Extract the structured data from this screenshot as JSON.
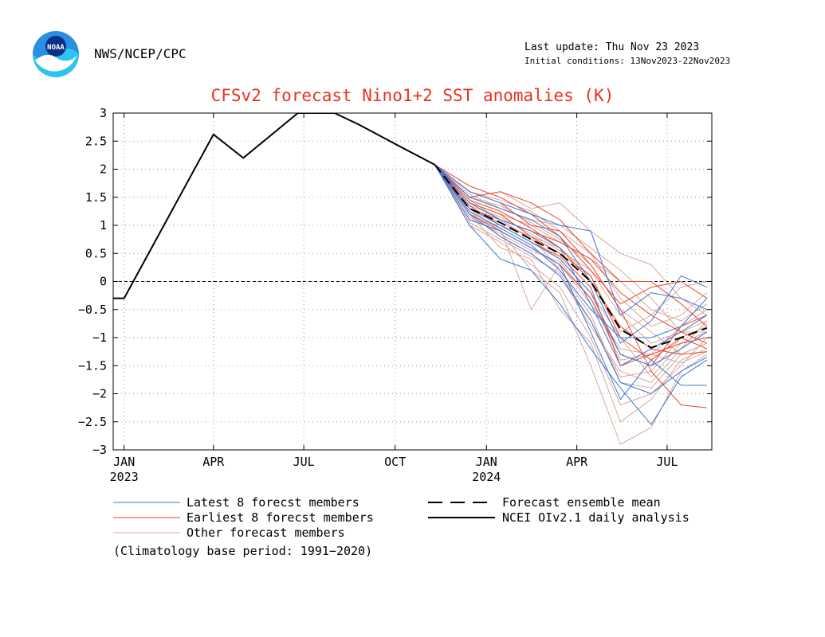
{
  "header": {
    "agency": "NWS/NCEP/CPC",
    "last_update": "Last update: Thu Nov 23 2023",
    "initial_conditions": "Initial conditions: 13Nov2023-22Nov2023",
    "logo_text": "NOAA"
  },
  "colors": {
    "title": "#e8321f",
    "latest": "#3a78d8",
    "earliest": "#e8462a",
    "other": "#d9a79b",
    "analysis": "#000000",
    "mean": "#000000"
  },
  "chart_data": {
    "type": "line",
    "title": "CFSv2 forecast Nino1+2 SST anomalies (K)",
    "ylim": [
      -3,
      3
    ],
    "yticks": [
      -3,
      -2.5,
      -2,
      -1.5,
      -1,
      -0.5,
      0,
      0.5,
      1,
      1.5,
      2,
      2.5,
      3
    ],
    "ytick_labels": [
      "−3",
      "−2.5",
      "−2",
      "−1.5",
      "−1",
      "−0.5",
      "0",
      "0.5",
      "1",
      "1.5",
      "2",
      "2.5",
      "3"
    ],
    "xlim": [
      "2022-12-21",
      "2024-08-15"
    ],
    "xticks": [
      "2023-01-01",
      "2023-04-01",
      "2023-07-01",
      "2023-10-01",
      "2024-01-01",
      "2024-04-01",
      "2024-07-01"
    ],
    "xtick_labels": [
      {
        "month": "JAN",
        "year": "2023"
      },
      {
        "month": "APR",
        "year": ""
      },
      {
        "month": "JUL",
        "year": ""
      },
      {
        "month": "OCT",
        "year": ""
      },
      {
        "month": "JAN",
        "year": "2024"
      },
      {
        "month": "APR",
        "year": ""
      },
      {
        "month": "JUL",
        "year": ""
      }
    ],
    "grid": true,
    "zero_line": true,
    "legend": [
      {
        "key": "latest",
        "label": "Latest 8 forecst members",
        "style": "solid"
      },
      {
        "key": "earliest",
        "label": "Earliest 8 forecst members",
        "style": "solid"
      },
      {
        "key": "other",
        "label": "Other forecast members",
        "style": "solid"
      },
      {
        "key": "mean",
        "label": "Forecast ensemble mean",
        "style": "dashed"
      },
      {
        "key": "analysis",
        "label": "NCEI OIv2.1 daily analysis",
        "style": "solid"
      }
    ],
    "note": "(Climatology base period: 1991−2020)",
    "analysis": {
      "x": [
        "2022-12-21",
        "2023-01-01",
        "2023-04-01",
        "2023-05-01",
        "2023-06-25",
        "2023-08-01",
        "2023-08-25",
        "2023-10-01",
        "2023-11-10"
      ],
      "y": [
        -0.3,
        -0.3,
        2.62,
        2.2,
        3.0,
        3.0,
        2.8,
        2.45,
        2.08
      ]
    },
    "forecast_x": [
      "2023-11-10",
      "2023-12-15",
      "2024-01-15",
      "2024-02-15",
      "2024-03-15",
      "2024-04-15",
      "2024-05-15",
      "2024-06-15",
      "2024-07-15",
      "2024-08-10"
    ],
    "ensemble_mean": [
      2.08,
      1.3,
      1.05,
      0.75,
      0.5,
      0.0,
      -0.85,
      -1.18,
      -1.0,
      -0.83
    ],
    "latest_members": [
      [
        2.08,
        1.0,
        0.4,
        0.2,
        -0.4,
        -1.2,
        -1.9,
        -2.55,
        -1.7,
        -1.4
      ],
      [
        2.08,
        1.2,
        0.8,
        0.5,
        0.1,
        -0.7,
        -1.8,
        -2.0,
        -1.6,
        -1.35
      ],
      [
        2.08,
        1.5,
        1.3,
        1.1,
        0.8,
        0.0,
        -1.1,
        -0.7,
        0.1,
        -0.1
      ],
      [
        2.08,
        1.4,
        1.1,
        0.9,
        0.6,
        -0.4,
        -1.5,
        -1.2,
        -0.9,
        -0.6
      ],
      [
        2.08,
        1.6,
        1.4,
        1.2,
        1.0,
        0.9,
        -0.6,
        -0.2,
        -0.3,
        -0.5
      ],
      [
        2.08,
        1.3,
        1.0,
        0.7,
        0.4,
        -0.2,
        -1.3,
        -1.5,
        -1.2,
        -0.9
      ],
      [
        2.08,
        1.1,
        0.9,
        0.6,
        0.3,
        -0.9,
        -2.1,
        -1.4,
        -1.85,
        -1.85
      ],
      [
        2.08,
        1.25,
        0.95,
        0.65,
        0.2,
        -0.5,
        -1.0,
        -1.0,
        -0.8,
        -0.3
      ]
    ],
    "earliest_members": [
      [
        2.08,
        1.5,
        1.6,
        1.4,
        1.1,
        0.5,
        0.0,
        0.0,
        -0.4,
        -0.8
      ],
      [
        2.08,
        1.6,
        1.4,
        1.0,
        0.9,
        0.3,
        -0.5,
        -1.6,
        -2.2,
        -2.25
      ],
      [
        2.08,
        1.4,
        1.2,
        0.8,
        0.5,
        0.1,
        -1.0,
        -1.4,
        -1.0,
        -1.2
      ],
      [
        2.08,
        1.3,
        1.1,
        0.9,
        0.7,
        0.4,
        -0.2,
        -0.6,
        -0.9,
        -1.1
      ],
      [
        2.08,
        1.2,
        0.9,
        0.6,
        0.3,
        -0.3,
        -1.3,
        -1.5,
        -0.8,
        -0.6
      ],
      [
        2.08,
        1.7,
        1.5,
        1.2,
        0.8,
        0.2,
        -0.4,
        -0.1,
        0.0,
        -0.3
      ],
      [
        2.08,
        1.45,
        1.25,
        0.95,
        0.6,
        0.0,
        -0.8,
        -1.2,
        -1.3,
        -1.25
      ],
      [
        2.08,
        1.35,
        1.0,
        0.7,
        0.45,
        -0.1,
        -1.5,
        -1.3,
        -1.1,
        -1.0
      ]
    ],
    "other_members": [
      [
        2.08,
        1.5,
        1.6,
        1.3,
        1.4,
        0.9,
        0.5,
        0.3,
        -0.3,
        -0.6
      ],
      [
        2.08,
        1.2,
        0.6,
        0.4,
        -0.5,
        -1.1,
        -2.5,
        -2.1,
        -1.4,
        -1.2
      ],
      [
        2.08,
        1.3,
        0.9,
        0.2,
        -0.2,
        -1.5,
        -2.9,
        -2.6,
        -1.6,
        -1.3
      ],
      [
        2.08,
        1.1,
        1.0,
        0.8,
        0.2,
        -0.6,
        -1.8,
        -1.9,
        -1.3,
        -1.1
      ],
      [
        2.08,
        1.4,
        1.2,
        1.0,
        0.7,
        0.4,
        0.0,
        -0.5,
        -0.7,
        -0.4
      ],
      [
        2.08,
        1.55,
        1.3,
        1.1,
        1.0,
        0.6,
        0.2,
        -0.3,
        -0.9,
        -0.9
      ],
      [
        2.08,
        1.25,
        0.8,
        0.5,
        0.1,
        -0.8,
        -1.6,
        -1.8,
        -1.2,
        -0.7
      ],
      [
        2.08,
        1.0,
        0.7,
        0.3,
        -0.1,
        -1.0,
        -2.2,
        -2.0,
        -1.5,
        -1.0
      ],
      [
        2.08,
        1.6,
        1.45,
        1.25,
        0.9,
        0.5,
        -0.3,
        -0.8,
        -0.6,
        -0.2
      ],
      [
        2.08,
        1.35,
        1.15,
        0.85,
        0.55,
        0.2,
        -0.6,
        -1.1,
        -0.9,
        -0.7
      ],
      [
        2.08,
        1.15,
        0.85,
        0.55,
        0.35,
        -0.3,
        -1.4,
        -1.3,
        -1.45,
        -1.25
      ],
      [
        2.08,
        1.45,
        1.1,
        0.75,
        0.4,
        -0.2,
        -1.0,
        -1.7,
        -1.1,
        -0.9
      ],
      [
        2.08,
        1.3,
        1.05,
        0.8,
        0.6,
        0.1,
        -0.9,
        -0.6,
        -0.1,
        0.0
      ],
      [
        2.08,
        1.05,
        0.75,
        0.45,
        0.15,
        -0.7,
        -1.7,
        -1.6,
        -1.0,
        -0.8
      ],
      [
        2.08,
        1.5,
        1.35,
        1.05,
        0.75,
        0.3,
        -0.5,
        -0.9,
        -1.3,
        -1.1
      ],
      [
        2.08,
        1.2,
        0.95,
        -0.5,
        0.3,
        -0.4,
        -1.2,
        -1.3,
        -0.8,
        -0.5
      ]
    ]
  }
}
